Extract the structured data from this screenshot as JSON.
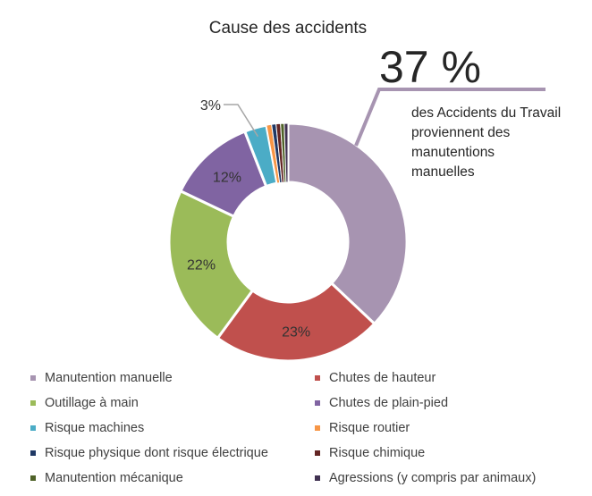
{
  "chart_data": {
    "type": "pie",
    "variant": "donut",
    "title": "Cause des accidents",
    "slices": [
      {
        "label": "Manutention manuelle",
        "value": 37,
        "color": "#a794b1",
        "data_label": ""
      },
      {
        "label": "Chutes de hauteur",
        "value": 23,
        "color": "#c0504d",
        "data_label": "23%"
      },
      {
        "label": "Outillage à main",
        "value": 22,
        "color": "#9bbb59",
        "data_label": "22%"
      },
      {
        "label": "Chutes de plain-pied",
        "value": 12,
        "color": "#8064a2",
        "data_label": "12%"
      },
      {
        "label": "Risque machines",
        "value": 3,
        "color": "#4bacc6",
        "data_label": "3%"
      },
      {
        "label": "Risque routier",
        "value": 0.7,
        "color": "#f79646",
        "data_label": ""
      },
      {
        "label": "Risque physique dont risque électrique",
        "value": 0.6,
        "color": "#1f3864",
        "data_label": ""
      },
      {
        "label": "Risque chimique",
        "value": 0.6,
        "color": "#632523",
        "data_label": ""
      },
      {
        "label": "Manutention mécanique",
        "value": 0.5,
        "color": "#4f6228",
        "data_label": ""
      },
      {
        "label": "Agressions (y compris par animaux)",
        "value": 0.5,
        "color": "#403151",
        "data_label": ""
      }
    ],
    "legend_position": "bottom",
    "callout": {
      "value": "37 %",
      "text_lines": [
        "des Accidents du Travail",
        "proviennent des",
        "manutentions",
        "manuelles"
      ]
    }
  }
}
